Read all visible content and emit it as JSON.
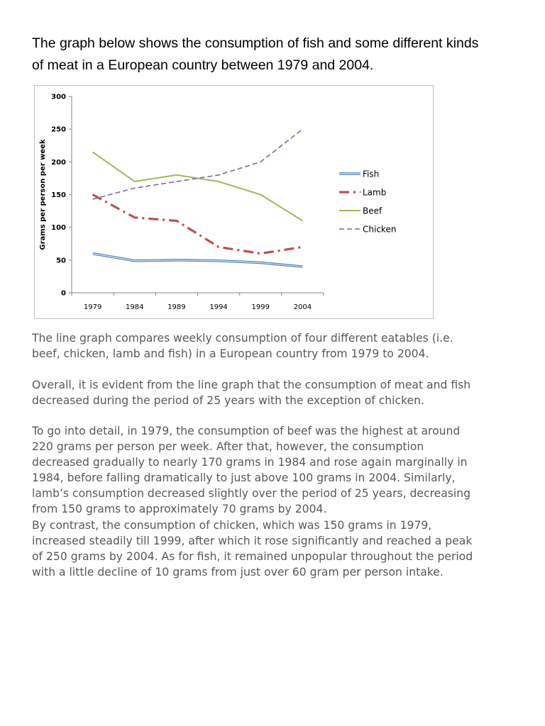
{
  "heading": {
    "lines": [
      "The graph below shows the consumption of fish and some different kinds",
      "of meat in a European country between 1979 and 2004."
    ]
  },
  "paragraphs": [
    {
      "lines": [
        "The line graph compares weekly consumption of four different eatables (i.e.",
        "beef, chicken, lamb and fish) in a European country from 1979 to 2004."
      ]
    },
    {
      "lines": [
        "Overall, it is evident from the line graph that the consumption of meat and fish",
        "decreased during the period of 25 years with the exception of chicken."
      ]
    },
    {
      "lines": [
        "To go into detail, in 1979, the consumption of beef was the highest at around",
        "220 grams per person per week. After that, however, the consumption",
        "decreased gradually to nearly 170 grams in 1984 and rose again marginally in",
        "1984, before falling dramatically to just above 100 grams in 2004. Similarly,",
        "lamb’s consumption decreased slightly over the period of 25 years, decreasing",
        "from 150 grams to approximately 70 grams by 2004."
      ]
    },
    {
      "lines": [
        "By contrast, the consumption of chicken, which was 150 grams in 1979,",
        "increased steadily till 1999, after which it rose significantly and reached a peak",
        "of 250 grams by 2004. As for fish, it remained unpopular throughout the period",
        "with a little decline of 10 grams from just over 60 gram per person intake."
      ]
    }
  ],
  "chart_data": {
    "type": "line",
    "title": "",
    "xlabel": "",
    "ylabel": "Grams per person per week",
    "categories": [
      "1979",
      "1984",
      "1989",
      "1994",
      "1999",
      "2004"
    ],
    "ylim": [
      0,
      300
    ],
    "yticks": [
      "0",
      "50",
      "100",
      "150",
      "200",
      "250",
      "300"
    ],
    "grid": false,
    "legend": "right",
    "series": [
      {
        "name": "Fish",
        "values": [
          60,
          49,
          50,
          49,
          46,
          40
        ],
        "color": "#4f81bd",
        "style": "double"
      },
      {
        "name": "Lamb",
        "values": [
          150,
          115,
          110,
          70,
          60,
          70
        ],
        "color": "#c0504d",
        "style": "dash-dot"
      },
      {
        "name": "Beef",
        "values": [
          215,
          170,
          180,
          170,
          150,
          110
        ],
        "color": "#9bbb59",
        "style": "solid"
      },
      {
        "name": "Chicken",
        "values": [
          143,
          160,
          170,
          180,
          200,
          250
        ],
        "color": "#8064a2",
        "style": "dashed"
      }
    ]
  }
}
